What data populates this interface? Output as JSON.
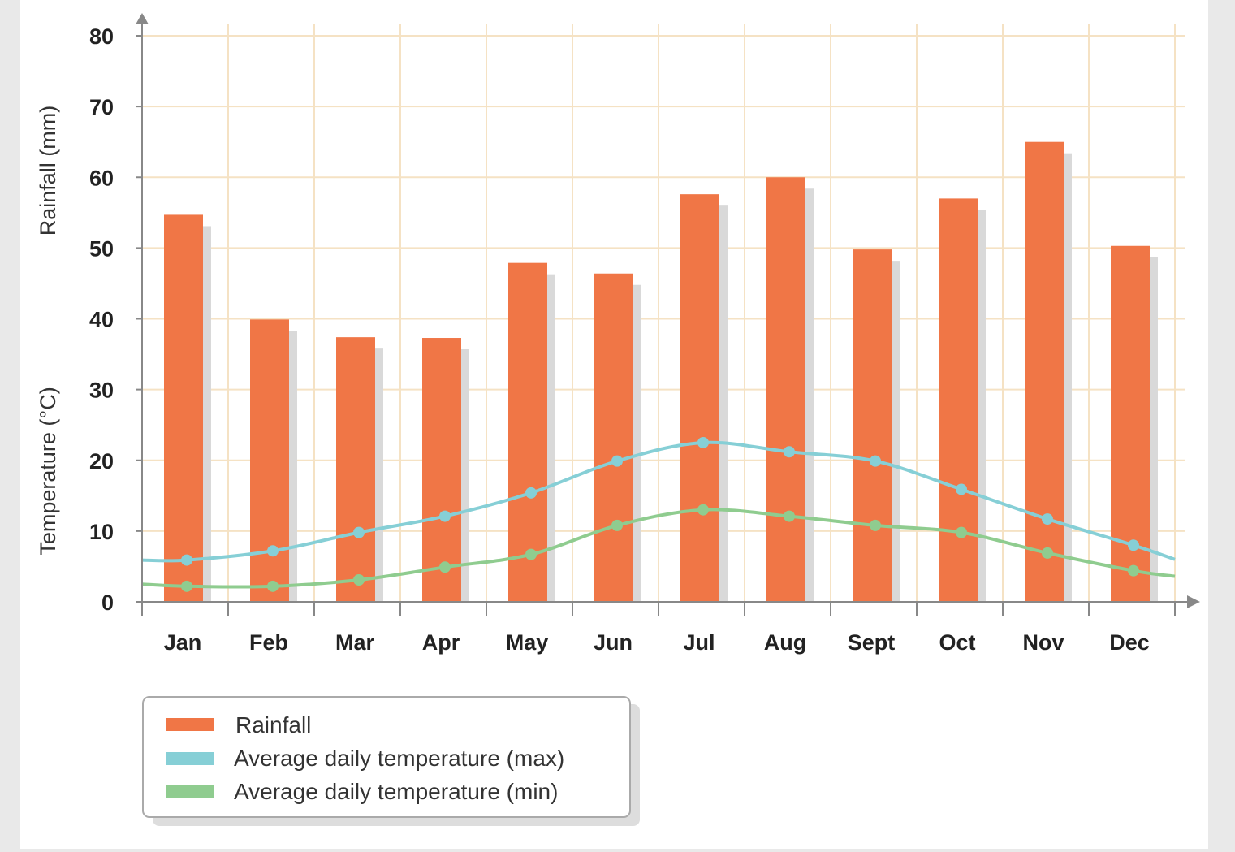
{
  "chart_data": {
    "type": "bar",
    "title": "",
    "xlabel": "",
    "ylabel": "Rainfall (mm)",
    "ylabel2": "Temperature (°C)",
    "ylabel2_parts": {
      "pre": "Temperature (",
      "sup": "o",
      "post": "C)"
    },
    "ylim": [
      0,
      80
    ],
    "yticks": [
      0,
      10,
      20,
      30,
      40,
      50,
      60,
      70,
      80
    ],
    "grid": true,
    "legend_position": "bottom-left",
    "categories": [
      "Jan",
      "Feb",
      "Mar",
      "Apr",
      "May",
      "Jun",
      "Jul",
      "Aug",
      "Sept",
      "Oct",
      "Nov",
      "Dec"
    ],
    "series": [
      {
        "name": "Rainfall",
        "kind": "bar",
        "color": "#f07646",
        "values": [
          54.7,
          39.9,
          37.4,
          37.3,
          47.9,
          46.4,
          57.6,
          60.0,
          49.8,
          57.0,
          65.0,
          50.3
        ]
      },
      {
        "name": "Average daily temperature (max)",
        "kind": "line",
        "color": "#86cfd6",
        "values": [
          5.9,
          7.2,
          9.8,
          12.1,
          15.4,
          19.9,
          22.5,
          21.2,
          19.9,
          15.9,
          11.7,
          8.0
        ],
        "start_value": 5.9,
        "end_value": 6.0
      },
      {
        "name": "Average daily temperature (min)",
        "kind": "line",
        "color": "#8fcc8f",
        "values": [
          2.2,
          2.2,
          3.1,
          4.9,
          6.7,
          10.8,
          13.0,
          12.1,
          10.8,
          9.8,
          6.9,
          4.4
        ],
        "start_value": 2.5,
        "end_value": 3.6
      }
    ]
  }
}
